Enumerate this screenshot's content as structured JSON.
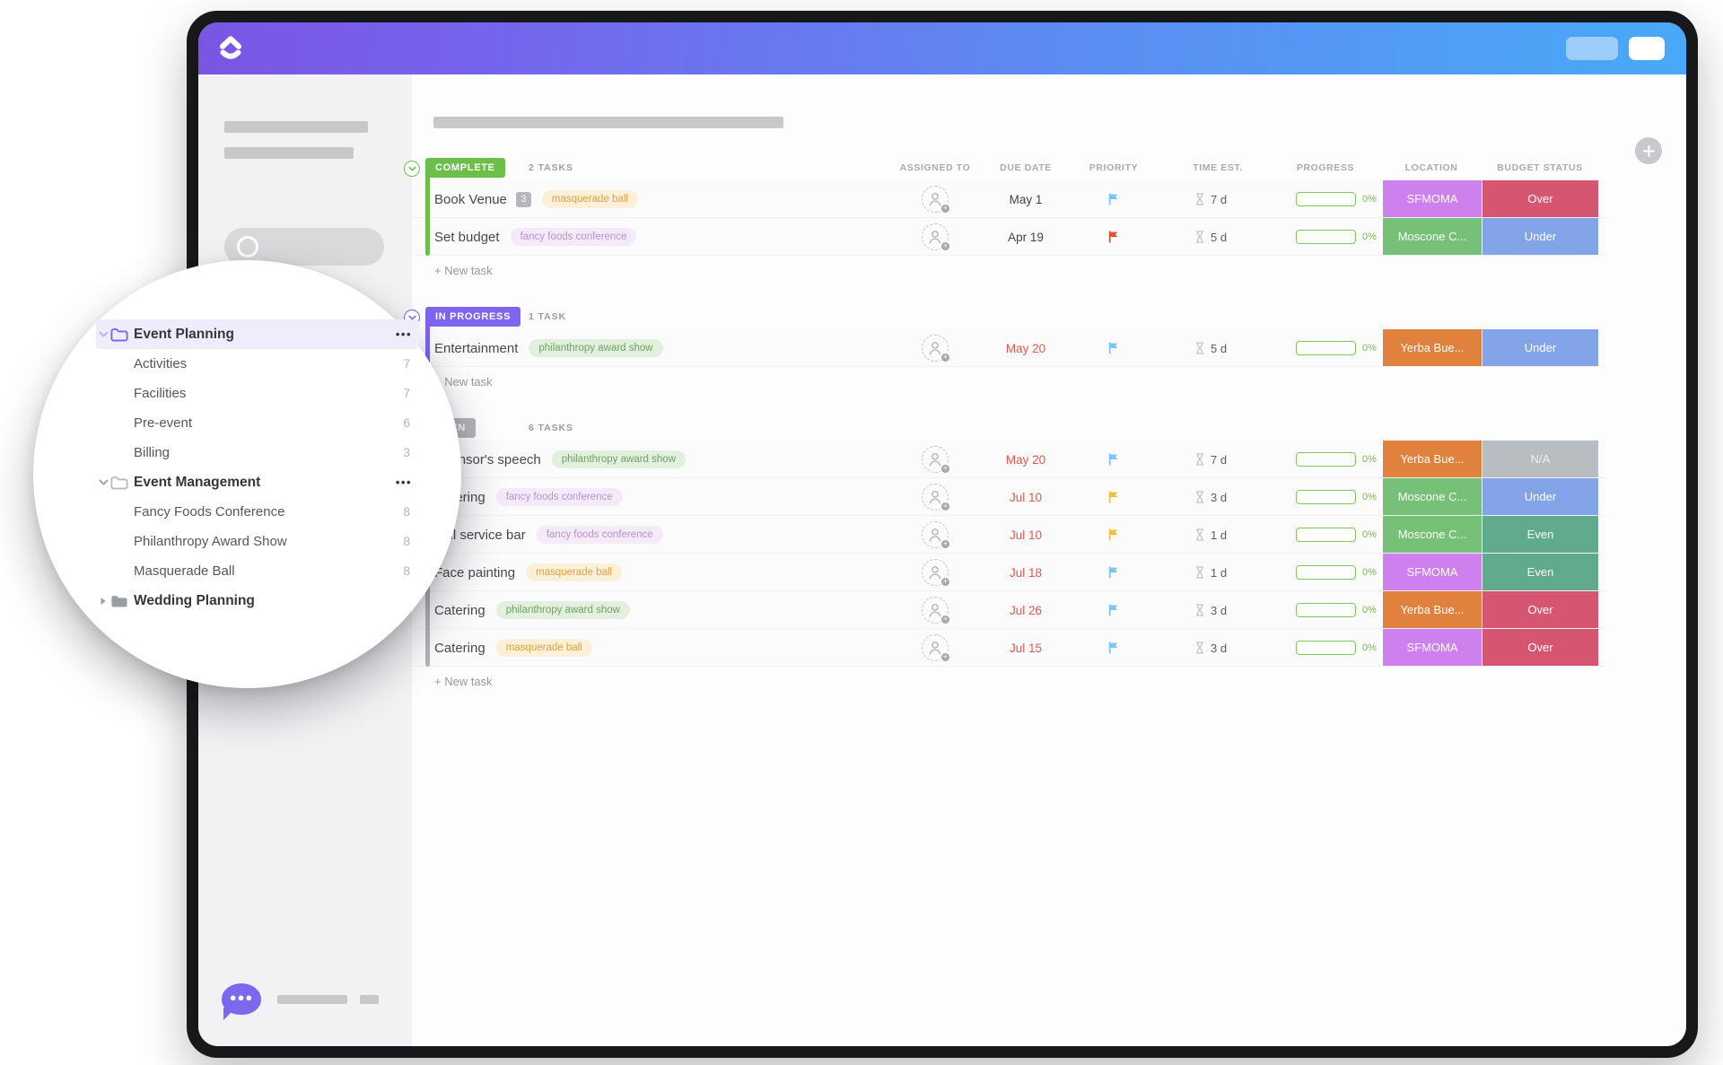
{
  "titlebar": {
    "buttons": [
      "secondary-pill",
      "primary-pill"
    ]
  },
  "sidebar": {
    "tree": [
      {
        "kind": "folder",
        "label": "Event Planning",
        "expanded": true,
        "selected": true,
        "theme": "purple",
        "menu": "..."
      },
      {
        "kind": "list",
        "label": "Activities",
        "count": "7"
      },
      {
        "kind": "list",
        "label": "Facilities",
        "count": "7"
      },
      {
        "kind": "list",
        "label": "Pre-event",
        "count": "6"
      },
      {
        "kind": "list",
        "label": "Billing",
        "count": "3"
      },
      {
        "kind": "folder",
        "label": "Event Management",
        "expanded": true,
        "theme": "gray",
        "menu": "..."
      },
      {
        "kind": "list",
        "label": "Fancy Foods Conference",
        "count": "8"
      },
      {
        "kind": "list",
        "label": "Philanthropy Award Show",
        "count": "8"
      },
      {
        "kind": "list",
        "label": "Masquerade Ball",
        "count": "8"
      },
      {
        "kind": "folder",
        "label": "Wedding Planning",
        "expanded": false,
        "theme": "gray-filled"
      }
    ]
  },
  "table": {
    "columns": [
      "ASSIGNED TO",
      "DUE DATE",
      "PRIORITY",
      "TIME EST.",
      "PROGRESS",
      "LOCATION",
      "BUDGET STATUS"
    ],
    "new_task_label": "+ New task",
    "groups": [
      {
        "status": "COMPLETE",
        "status_color": "#6cc04a",
        "count_label": "2 TASKS",
        "tasks": [
          {
            "name": "Book Venue",
            "subtask_count": "3",
            "tag": {
              "label": "masquerade ball",
              "theme": "orange"
            },
            "due": {
              "label": "May 1",
              "tone": "dark"
            },
            "priority": "blue",
            "time_estimate": "7 d",
            "progress": "0%",
            "location": {
              "label": "SFMOMA",
              "theme": "violet"
            },
            "budget": {
              "label": "Over",
              "theme": "over"
            }
          },
          {
            "name": "Set budget",
            "tag": {
              "label": "fancy foods conference",
              "theme": "purple"
            },
            "due": {
              "label": "Apr 19",
              "tone": "dark"
            },
            "priority": "red",
            "time_estimate": "5 d",
            "progress": "0%",
            "location": {
              "label": "Moscone C...",
              "theme": "green"
            },
            "budget": {
              "label": "Under",
              "theme": "under"
            }
          }
        ]
      },
      {
        "status": "IN PROGRESS",
        "status_color": "#7f64f0",
        "count_label": "1 TASK",
        "tasks": [
          {
            "name": "Entertainment",
            "tag": {
              "label": "philanthropy award show",
              "theme": "green"
            },
            "due": {
              "label": "May 20",
              "tone": "red"
            },
            "priority": "blue",
            "time_estimate": "5 d",
            "progress": "0%",
            "location": {
              "label": "Yerba Bue...",
              "theme": "orange"
            },
            "budget": {
              "label": "Under",
              "theme": "under"
            }
          }
        ]
      },
      {
        "status": "OPEN",
        "status_color": "#b2b4b9",
        "count_label": "6 TASKS",
        "tasks": [
          {
            "name": "Sponsor's speech",
            "tag": {
              "label": "philanthropy award show",
              "theme": "green"
            },
            "due": {
              "label": "May 20",
              "tone": "red"
            },
            "priority": "blue",
            "time_estimate": "7 d",
            "progress": "0%",
            "location": {
              "label": "Yerba Bue...",
              "theme": "orange"
            },
            "budget": {
              "label": "N/A",
              "theme": "na"
            }
          },
          {
            "name": "Catering",
            "tag": {
              "label": "fancy foods conference",
              "theme": "purple"
            },
            "due": {
              "label": "Jul 10",
              "tone": "red"
            },
            "priority": "yellow",
            "time_estimate": "3 d",
            "progress": "0%",
            "location": {
              "label": "Moscone C...",
              "theme": "green"
            },
            "budget": {
              "label": "Under",
              "theme": "under"
            }
          },
          {
            "name": "Full service bar",
            "tag": {
              "label": "fancy foods conference",
              "theme": "purple"
            },
            "due": {
              "label": "Jul 10",
              "tone": "red"
            },
            "priority": "yellow",
            "time_estimate": "1 d",
            "progress": "0%",
            "location": {
              "label": "Moscone C...",
              "theme": "green"
            },
            "budget": {
              "label": "Even",
              "theme": "even"
            }
          },
          {
            "name": "Face painting",
            "tag": {
              "label": "masquerade ball",
              "theme": "orange"
            },
            "due": {
              "label": "Jul 18",
              "tone": "red"
            },
            "priority": "blue",
            "time_estimate": "1 d",
            "progress": "0%",
            "location": {
              "label": "SFMOMA",
              "theme": "violet"
            },
            "budget": {
              "label": "Even",
              "theme": "even"
            }
          },
          {
            "name": "Catering",
            "tag": {
              "label": "philanthropy award show",
              "theme": "green"
            },
            "due": {
              "label": "Jul 26",
              "tone": "red"
            },
            "priority": "blue",
            "time_estimate": "3 d",
            "progress": "0%",
            "location": {
              "label": "Yerba Bue...",
              "theme": "orange"
            },
            "budget": {
              "label": "Over",
              "theme": "over"
            }
          },
          {
            "name": "Catering",
            "tag": {
              "label": "masquerade ball",
              "theme": "orange"
            },
            "due": {
              "label": "Jul 15",
              "tone": "red"
            },
            "priority": "blue",
            "time_estimate": "3 d",
            "progress": "0%",
            "location": {
              "label": "SFMOMA",
              "theme": "violet"
            },
            "budget": {
              "label": "Over",
              "theme": "over"
            }
          }
        ]
      }
    ]
  },
  "colors": {
    "tags": {
      "orange": {
        "bg": "#fdf0d8",
        "fg": "#dfa23e"
      },
      "purple": {
        "bg": "#f4ebf8",
        "fg": "#bd90d4"
      },
      "green": {
        "bg": "#e2f0dd",
        "fg": "#6aa465"
      }
    },
    "locations": {
      "violet": "#cd80ee",
      "green": "#76c177",
      "orange": "#e0813d"
    },
    "budgets": {
      "over": "#d65671",
      "under": "#84a4ea",
      "even": "#61aa8d",
      "na": "#b9bcc1"
    },
    "flags": {
      "blue": "#7cc4f3",
      "yellow": "#f1bf41",
      "red": "#e14e3c"
    },
    "due": {
      "red": "#e4574b",
      "dark": "#3f434b"
    },
    "folders": {
      "purple": "#7b68ee",
      "gray": "#b9bbc0",
      "gray-filled": "#9a9da3"
    }
  }
}
